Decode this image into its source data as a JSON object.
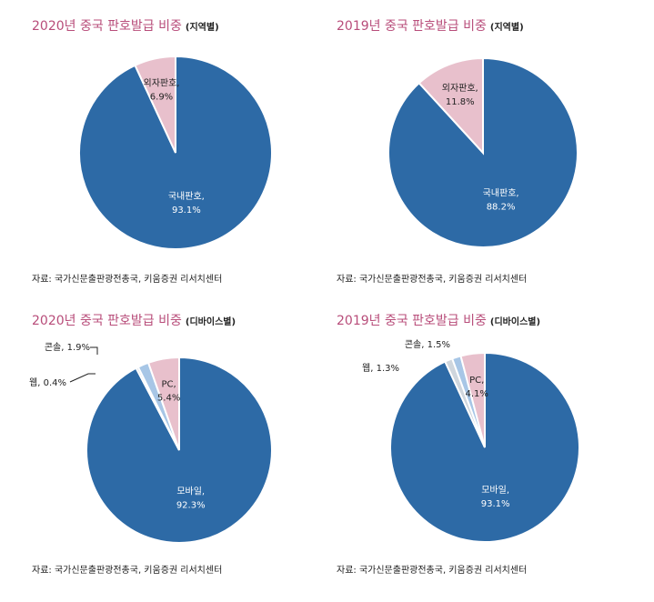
{
  "colors": {
    "domestic": "#2d6aa6",
    "foreign": "#e8c0cc",
    "pc": "#e8c0cc",
    "console": "#a7c6e6",
    "web": "#cfd6dd",
    "title": "#b84d7a"
  },
  "source_label": "자료: 국가신문출판광전총국, 키움증권 리서치센터",
  "chart_data": [
    {
      "type": "pie",
      "title": "2020년 중국 판호발급 비중",
      "subtitle": "(지역별)",
      "slices": [
        {
          "label": "국내판호,",
          "value": 93.1,
          "value_label": "93.1%",
          "color": "#2d6aa6",
          "text_color": "#ffffff"
        },
        {
          "label": "외자판호,",
          "value": 6.9,
          "value_label": "6.9%",
          "color": "#e8c0cc",
          "text_color": "#222222"
        }
      ]
    },
    {
      "type": "pie",
      "title": "2019년 중국 판호발급 비중",
      "subtitle": "(지역별)",
      "slices": [
        {
          "label": "국내판호,",
          "value": 88.2,
          "value_label": "88.2%",
          "color": "#2d6aa6",
          "text_color": "#ffffff"
        },
        {
          "label": "외자판호,",
          "value": 11.8,
          "value_label": "11.8%",
          "color": "#e8c0cc",
          "text_color": "#222222"
        }
      ]
    },
    {
      "type": "pie",
      "title": "2020년 중국 판호발급 비중",
      "subtitle": "(디바이스별)",
      "slices": [
        {
          "label": "모바일,",
          "value": 92.3,
          "value_label": "92.3%",
          "color": "#2d6aa6",
          "text_color": "#ffffff"
        },
        {
          "label": "웹, 0.4%",
          "value": 0.4,
          "value_label": "",
          "color": "#cfd6dd",
          "text_color": "#222222"
        },
        {
          "label": "콘솔, 1.9%",
          "value": 1.9,
          "value_label": "",
          "color": "#a7c6e6",
          "text_color": "#222222"
        },
        {
          "label": "PC,",
          "value": 5.4,
          "value_label": "5.4%",
          "color": "#e8c0cc",
          "text_color": "#222222"
        }
      ]
    },
    {
      "type": "pie",
      "title": "2019년 중국 판호발급 비중",
      "subtitle": "(디바이스별)",
      "slices": [
        {
          "label": "모바일,",
          "value": 93.1,
          "value_label": "93.1%",
          "color": "#2d6aa6",
          "text_color": "#ffffff"
        },
        {
          "label": "웹, 1.3%",
          "value": 1.3,
          "value_label": "",
          "color": "#cfd6dd",
          "text_color": "#222222"
        },
        {
          "label": "콘솔, 1.5%",
          "value": 1.5,
          "value_label": "",
          "color": "#a7c6e6",
          "text_color": "#222222"
        },
        {
          "label": "PC,",
          "value": 4.1,
          "value_label": "4.1%",
          "color": "#e8c0cc",
          "text_color": "#222222"
        }
      ]
    }
  ]
}
